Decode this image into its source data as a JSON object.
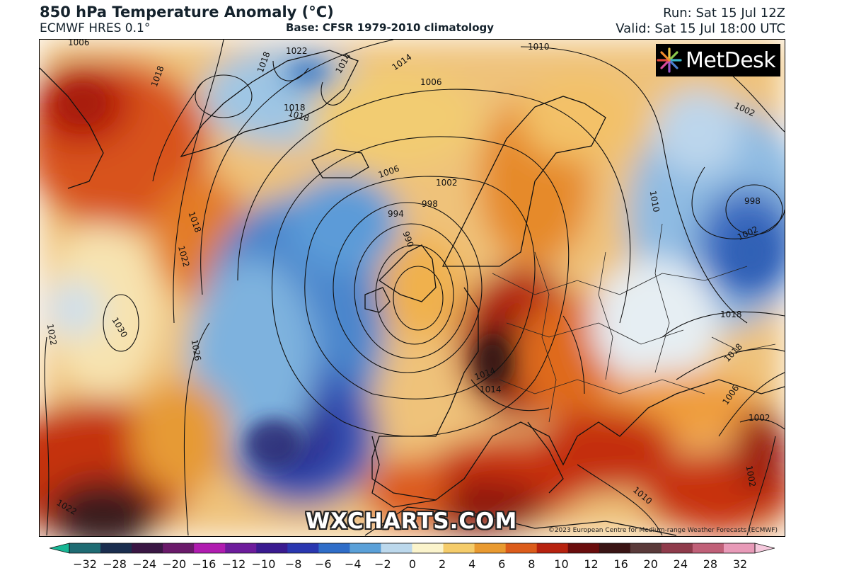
{
  "header": {
    "title": "850 hPa Temperature Anomaly (°C)",
    "model": "ECMWF HRES 0.1°",
    "base": "Base: CFSR 1979-2010 climatology",
    "run": "Run: Sat 15 Jul 12Z",
    "valid": "Valid: Sat 15 Jul 18:00 UTC"
  },
  "branding": {
    "logo_text": "MetDesk",
    "watermark": "WXCHARTS.COM",
    "copyright": "©2023 European Centre for Medium-range Weather Forecasts (ECMWF)"
  },
  "isobar_labels": [
    "1006",
    "1022",
    "1018",
    "1018",
    "1014",
    "1014",
    "1010",
    "1006",
    "1002",
    "1018",
    "1006",
    "1002",
    "998",
    "994",
    "990",
    "1018",
    "1022",
    "1030",
    "1022",
    "1026",
    "1018",
    "1010",
    "998",
    "1002",
    "1018",
    "1018",
    "1014",
    "1014",
    "1006",
    "1002",
    "1010",
    "1002",
    "1022"
  ],
  "colorbar": {
    "ticks": [
      "−32",
      "−28",
      "−24",
      "−20",
      "−16",
      "−12",
      "−10",
      "−8",
      "−6",
      "−4",
      "−2",
      "0",
      "2",
      "4",
      "6",
      "8",
      "10",
      "12",
      "16",
      "20",
      "24",
      "28",
      "32"
    ],
    "colors": [
      "#18b795",
      "#1f6b73",
      "#1b2e4f",
      "#3a1744",
      "#6a1a6a",
      "#b01cb0",
      "#6d1c9c",
      "#3a1b90",
      "#2a37b0",
      "#2f6dc8",
      "#5aa0d8",
      "#bcd8ec",
      "#fbf4cc",
      "#f5cc6a",
      "#e99a30",
      "#dc5c1b",
      "#b7220f",
      "#6a0d0d",
      "#3a1414",
      "#5a3a3a",
      "#8f3b4b",
      "#c06078",
      "#e89ab8",
      "#f5c8dc"
    ]
  }
}
